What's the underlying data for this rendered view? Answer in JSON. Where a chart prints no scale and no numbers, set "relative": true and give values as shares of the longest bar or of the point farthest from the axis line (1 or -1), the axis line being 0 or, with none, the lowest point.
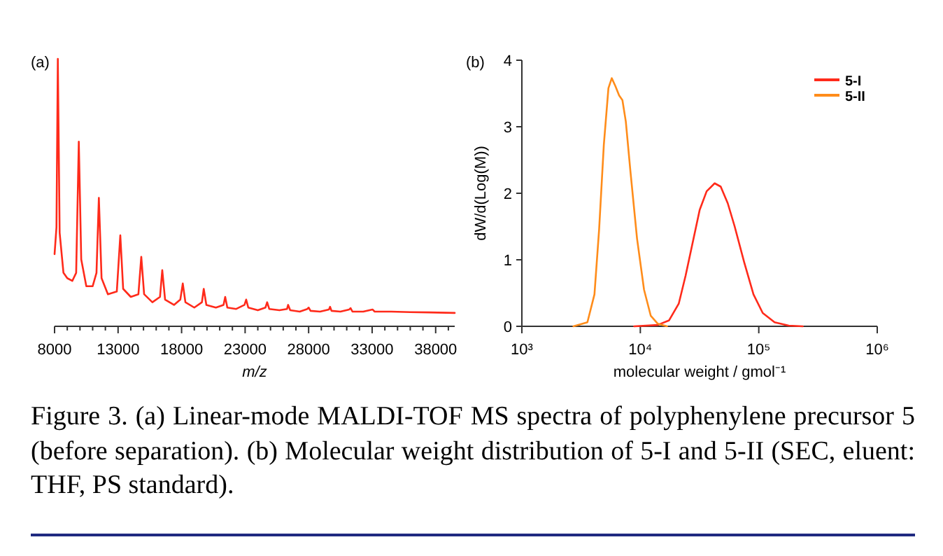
{
  "chart_data": [
    {
      "type": "line",
      "title": "(a)",
      "xlabel": "m/z",
      "relative": true,
      "tick_labels": "x",
      "xlim": [
        8000,
        39500
      ],
      "xticks": [
        8000,
        {
          "value": 9000,
          "label": null
        },
        {
          "value": 10000,
          "label": null
        },
        {
          "value": 11000,
          "label": null
        },
        {
          "value": 12000,
          "label": null
        },
        13000,
        {
          "value": 14000,
          "label": null
        },
        {
          "value": 15000,
          "label": null
        },
        {
          "value": 16000,
          "label": null
        },
        {
          "value": 17000,
          "label": null
        },
        18000,
        {
          "value": 19000,
          "label": null
        },
        {
          "value": 20000,
          "label": null
        },
        {
          "value": 21000,
          "label": null
        },
        {
          "value": 22000,
          "label": null
        },
        23000,
        {
          "value": 24000,
          "label": null
        },
        {
          "value": 25000,
          "label": null
        },
        {
          "value": 26000,
          "label": null
        },
        {
          "value": 27000,
          "label": null
        },
        28000,
        {
          "value": 29000,
          "label": null
        },
        {
          "value": 30000,
          "label": null
        },
        {
          "value": 31000,
          "label": null
        },
        {
          "value": 32000,
          "label": null
        },
        33000,
        {
          "value": 34000,
          "label": null
        },
        {
          "value": 35000,
          "label": null
        },
        {
          "value": 36000,
          "label": null
        },
        {
          "value": 37000,
          "label": null
        },
        38000,
        {
          "value": 39000,
          "label": null
        }
      ],
      "series": [
        {
          "color": "#ff2a1a",
          "x": [
            8000,
            8150,
            8257,
            8400,
            8700,
            9000,
            9400,
            9700,
            9908,
            10100,
            10500,
            11000,
            11300,
            11487,
            11700,
            12200,
            12900,
            13175,
            13400,
            14000,
            14600,
            14826,
            15050,
            15700,
            16300,
            16478,
            16700,
            17400,
            17900,
            18093,
            18300,
            19000,
            19600,
            19744,
            19950,
            20700,
            21300,
            21432,
            21600,
            22300,
            22950,
            23084,
            23250,
            24000,
            24600,
            24735,
            24900,
            25700,
            26300,
            26387,
            26550,
            27300,
            27900,
            28002,
            28150,
            28900,
            29600,
            29690,
            29800,
            30500,
            31200,
            31305,
            31450,
            32300,
            33030,
            33200,
            34500,
            36000,
            37500,
            39500
          ],
          "values": [
            0.27,
            0.37,
            1.0,
            0.35,
            0.2,
            0.18,
            0.17,
            0.2,
            0.69,
            0.25,
            0.15,
            0.15,
            0.2,
            0.48,
            0.18,
            0.12,
            0.13,
            0.34,
            0.14,
            0.11,
            0.12,
            0.26,
            0.12,
            0.09,
            0.11,
            0.21,
            0.1,
            0.08,
            0.1,
            0.16,
            0.09,
            0.07,
            0.09,
            0.14,
            0.08,
            0.07,
            0.08,
            0.11,
            0.07,
            0.065,
            0.08,
            0.1,
            0.07,
            0.06,
            0.07,
            0.09,
            0.065,
            0.06,
            0.065,
            0.08,
            0.06,
            0.055,
            0.065,
            0.07,
            0.058,
            0.055,
            0.063,
            0.073,
            0.058,
            0.055,
            0.063,
            0.068,
            0.055,
            0.055,
            0.063,
            0.055,
            0.055,
            0.053,
            0.052,
            0.05
          ]
        }
      ]
    },
    {
      "type": "line",
      "title": "(b)",
      "xlabel": "molecular weight / gmol⁻¹",
      "ylabel": "dW/d(Log(M))",
      "log": "x",
      "xlim": [
        1000,
        1000000
      ],
      "xticks": [
        {
          "value": 1000,
          "label": "10³"
        },
        {
          "value": 10000,
          "label": "10⁴"
        },
        {
          "value": 100000,
          "label": "10⁵"
        },
        {
          "value": 1000000,
          "label": "10⁶"
        }
      ],
      "ylim": [
        0,
        4
      ],
      "yticks": [
        0,
        1,
        2,
        3,
        4
      ],
      "legend": "top right",
      "series": [
        {
          "name": "5-I",
          "color": "#ff2a1a",
          "x": [
            8870,
            14000,
            17500,
            21100,
            24100,
            27600,
            31700,
            36300,
            42400,
            47700,
            54700,
            62600,
            75100,
            90200,
            108000,
            136000,
            179000,
            235000
          ],
          "values": [
            0,
            0.02,
            0.09,
            0.34,
            0.76,
            1.25,
            1.75,
            2.03,
            2.15,
            2.1,
            1.85,
            1.5,
            0.97,
            0.48,
            0.2,
            0.06,
            0.01,
            0
          ]
        },
        {
          "name": "5-II",
          "color": "#ff8c1a",
          "x": [
            2725,
            3575,
            4100,
            4490,
            4920,
            5380,
            5740,
            6160,
            6620,
            7060,
            7540,
            8270,
            9380,
            10750,
            12240,
            14000,
            16800
          ],
          "values": [
            0,
            0.06,
            0.48,
            1.46,
            2.73,
            3.58,
            3.73,
            3.61,
            3.47,
            3.4,
            3.08,
            2.31,
            1.32,
            0.55,
            0.16,
            0.04,
            0
          ]
        }
      ]
    },
    {
      "type": "other",
      "annotations": [
        "Figure 3. (a) Linear-mode MALDI-TOF MS spectra of polyphenylene precursor 5 (before separation). (b) Molecular weight distribution of 5-I and 5-II (SEC, eluent: THF, PS standard)."
      ]
    }
  ]
}
